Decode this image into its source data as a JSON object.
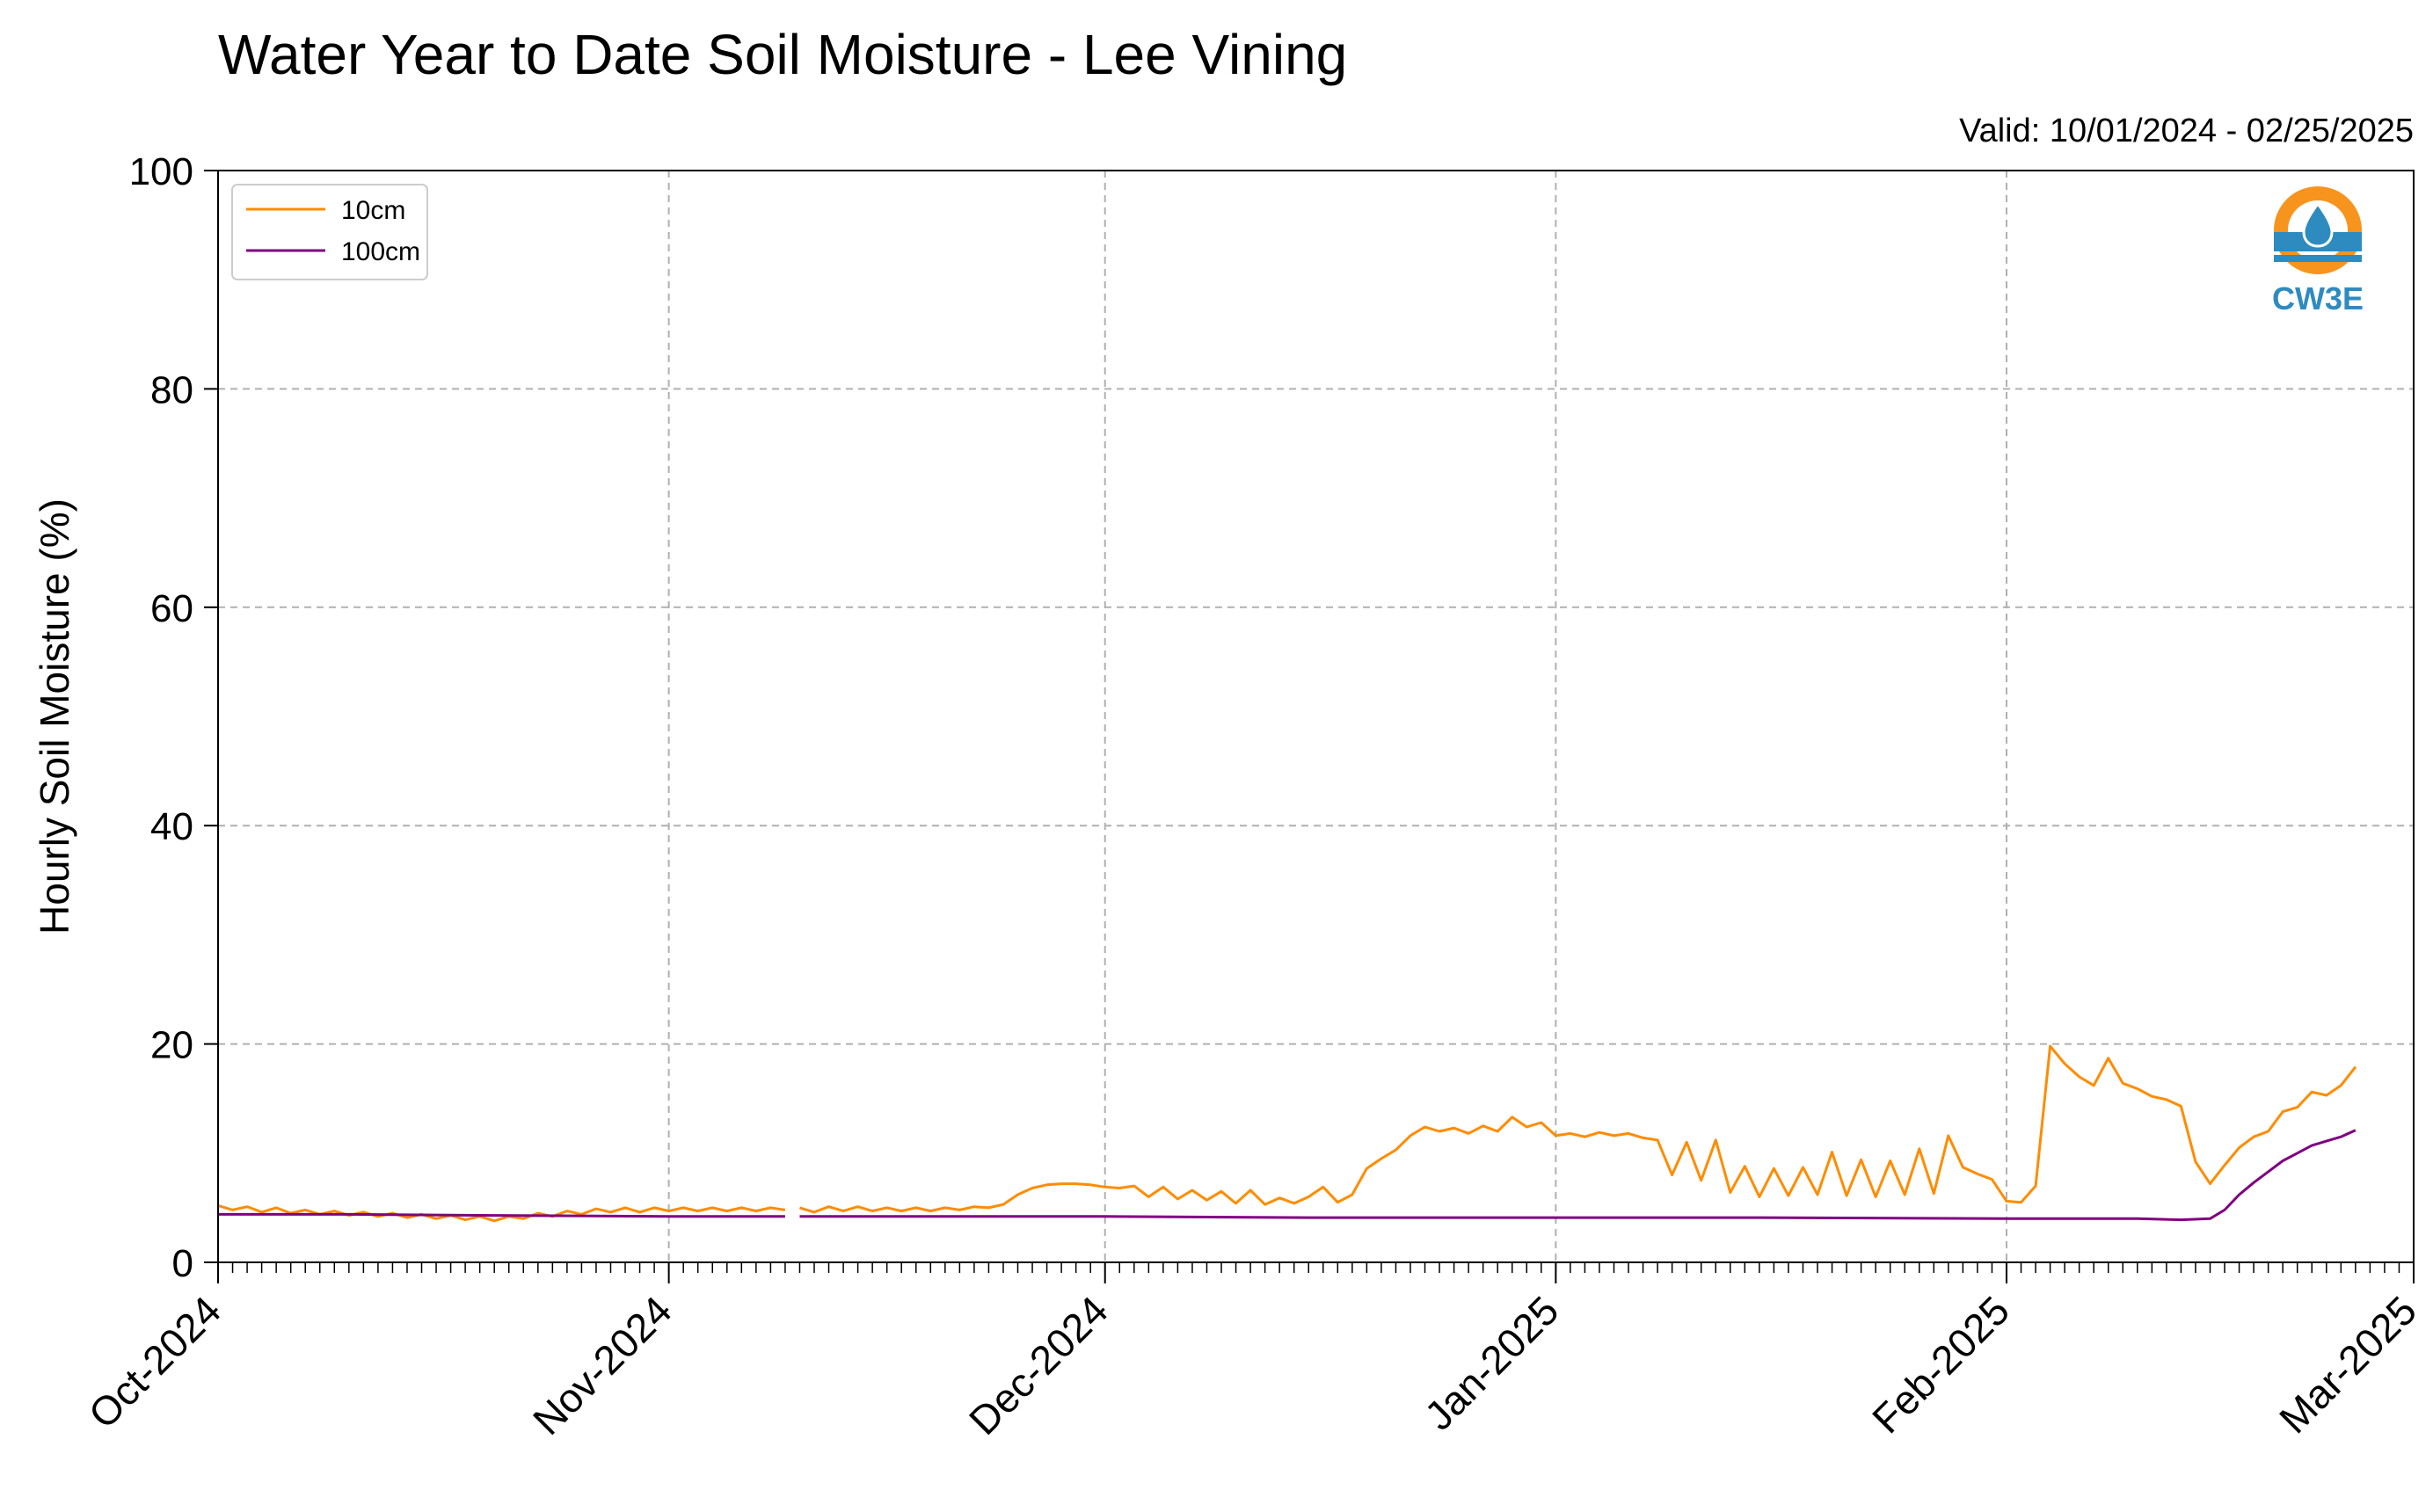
{
  "chart_data": {
    "type": "line",
    "title": "Water Year to Date Soil Moisture - Lee Vining",
    "subtitle": "Valid: 10/01/2024 - 02/25/2025",
    "xlabel": "",
    "ylabel": "Hourly Soil Moisture (%)",
    "x_range": [
      "2024-10-01",
      "2025-03-01"
    ],
    "ylim": [
      0,
      100
    ],
    "yticks": [
      0,
      20,
      40,
      60,
      80,
      100
    ],
    "ytick_labels": [
      "0",
      "20",
      "40",
      "60",
      "80",
      "100"
    ],
    "xticks": [
      "2024-10-01",
      "2024-11-01",
      "2024-12-01",
      "2025-01-01",
      "2025-02-01",
      "2025-03-01"
    ],
    "xtick_labels": [
      "Oct-2024",
      "Nov-2024",
      "Dec-2024",
      "Jan-2025",
      "Feb-2025",
      "Mar-2025"
    ],
    "grid": true,
    "legend_position": "top-left",
    "logo_text": "CW3E",
    "colors": {
      "10cm": "#ff8c00",
      "100cm": "#800080",
      "grid": "#b0b0b0",
      "logo_orange": "#f7941d",
      "logo_blue": "#2e8bc0"
    },
    "series": [
      {
        "name": "10cm",
        "color": "#ff8c00",
        "segments": [
          [
            [
              "2024-10-01",
              5.2
            ],
            [
              "2024-10-02",
              4.8
            ],
            [
              "2024-10-03",
              5.1
            ],
            [
              "2024-10-04",
              4.6
            ],
            [
              "2024-10-05",
              5.0
            ],
            [
              "2024-10-06",
              4.5
            ],
            [
              "2024-10-07",
              4.8
            ],
            [
              "2024-10-08",
              4.4
            ],
            [
              "2024-10-09",
              4.7
            ],
            [
              "2024-10-10",
              4.3
            ],
            [
              "2024-10-11",
              4.6
            ],
            [
              "2024-10-12",
              4.2
            ],
            [
              "2024-10-13",
              4.5
            ],
            [
              "2024-10-14",
              4.1
            ],
            [
              "2024-10-15",
              4.4
            ],
            [
              "2024-10-16",
              4.0
            ],
            [
              "2024-10-17",
              4.3
            ],
            [
              "2024-10-18",
              3.9
            ],
            [
              "2024-10-19",
              4.2
            ],
            [
              "2024-10-20",
              3.8
            ],
            [
              "2024-10-21",
              4.2
            ],
            [
              "2024-10-22",
              4.0
            ],
            [
              "2024-10-23",
              4.5
            ],
            [
              "2024-10-24",
              4.2
            ],
            [
              "2024-10-25",
              4.7
            ],
            [
              "2024-10-26",
              4.4
            ],
            [
              "2024-10-27",
              4.9
            ],
            [
              "2024-10-28",
              4.6
            ],
            [
              "2024-10-29",
              5.0
            ],
            [
              "2024-10-30",
              4.6
            ],
            [
              "2024-10-31",
              5.0
            ],
            [
              "2024-11-01",
              4.7
            ],
            [
              "2024-11-02",
              5.0
            ],
            [
              "2024-11-03",
              4.7
            ],
            [
              "2024-11-04",
              5.0
            ],
            [
              "2024-11-05",
              4.7
            ],
            [
              "2024-11-06",
              5.0
            ],
            [
              "2024-11-07",
              4.7
            ],
            [
              "2024-11-08",
              5.0
            ],
            [
              "2024-11-09",
              4.8
            ]
          ],
          [
            [
              "2024-11-10",
              5.0
            ],
            [
              "2024-11-11",
              4.6
            ],
            [
              "2024-11-12",
              5.1
            ],
            [
              "2024-11-13",
              4.7
            ],
            [
              "2024-11-14",
              5.1
            ],
            [
              "2024-11-15",
              4.7
            ],
            [
              "2024-11-16",
              5.0
            ],
            [
              "2024-11-17",
              4.7
            ],
            [
              "2024-11-18",
              5.0
            ],
            [
              "2024-11-19",
              4.7
            ],
            [
              "2024-11-20",
              5.0
            ],
            [
              "2024-11-21",
              4.8
            ],
            [
              "2024-11-22",
              5.1
            ],
            [
              "2024-11-23",
              5.0
            ],
            [
              "2024-11-24",
              5.3
            ],
            [
              "2024-11-25",
              6.2
            ],
            [
              "2024-11-26",
              6.8
            ],
            [
              "2024-11-27",
              7.1
            ],
            [
              "2024-11-28",
              7.2
            ],
            [
              "2024-11-29",
              7.2
            ],
            [
              "2024-11-30",
              7.1
            ],
            [
              "2024-12-01",
              6.9
            ],
            [
              "2024-12-02",
              6.8
            ],
            [
              "2024-12-03",
              7.0
            ],
            [
              "2024-12-04",
              6.0
            ],
            [
              "2024-12-05",
              6.9
            ],
            [
              "2024-12-06",
              5.8
            ],
            [
              "2024-12-07",
              6.6
            ],
            [
              "2024-12-08",
              5.7
            ],
            [
              "2024-12-09",
              6.5
            ],
            [
              "2024-12-10",
              5.4
            ],
            [
              "2024-12-11",
              6.6
            ],
            [
              "2024-12-12",
              5.3
            ],
            [
              "2024-12-13",
              5.9
            ],
            [
              "2024-12-14",
              5.4
            ],
            [
              "2024-12-15",
              6.0
            ],
            [
              "2024-12-16",
              6.9
            ],
            [
              "2024-12-17",
              5.5
            ],
            [
              "2024-12-18",
              6.2
            ],
            [
              "2024-12-19",
              8.6
            ],
            [
              "2024-12-20",
              9.5
            ],
            [
              "2024-12-21",
              10.3
            ],
            [
              "2024-12-22",
              11.6
            ],
            [
              "2024-12-23",
              12.4
            ],
            [
              "2024-12-24",
              12.0
            ],
            [
              "2024-12-25",
              12.3
            ],
            [
              "2024-12-26",
              11.8
            ],
            [
              "2024-12-27",
              12.5
            ],
            [
              "2024-12-28",
              12.0
            ],
            [
              "2024-12-29",
              13.3
            ],
            [
              "2024-12-30",
              12.4
            ],
            [
              "2024-12-31",
              12.8
            ],
            [
              "2025-01-01",
              11.6
            ],
            [
              "2025-01-02",
              11.8
            ],
            [
              "2025-01-03",
              11.5
            ],
            [
              "2025-01-04",
              11.9
            ],
            [
              "2025-01-05",
              11.6
            ],
            [
              "2025-01-06",
              11.8
            ],
            [
              "2025-01-07",
              11.4
            ],
            [
              "2025-01-08",
              11.2
            ],
            [
              "2025-01-09",
              8.0
            ],
            [
              "2025-01-10",
              11.0
            ],
            [
              "2025-01-11",
              7.5
            ],
            [
              "2025-01-12",
              11.2
            ],
            [
              "2025-01-13",
              6.4
            ],
            [
              "2025-01-14",
              8.8
            ],
            [
              "2025-01-15",
              6.0
            ],
            [
              "2025-01-16",
              8.6
            ],
            [
              "2025-01-17",
              6.1
            ],
            [
              "2025-01-18",
              8.7
            ],
            [
              "2025-01-19",
              6.2
            ],
            [
              "2025-01-20",
              10.1
            ],
            [
              "2025-01-21",
              6.1
            ],
            [
              "2025-01-22",
              9.4
            ],
            [
              "2025-01-23",
              6.0
            ],
            [
              "2025-01-24",
              9.3
            ],
            [
              "2025-01-25",
              6.2
            ],
            [
              "2025-01-26",
              10.4
            ],
            [
              "2025-01-27",
              6.3
            ],
            [
              "2025-01-28",
              11.6
            ],
            [
              "2025-01-29",
              8.7
            ],
            [
              "2025-01-30",
              8.1
            ],
            [
              "2025-01-31",
              7.6
            ],
            [
              "2025-02-01",
              5.6
            ],
            [
              "2025-02-02",
              5.5
            ],
            [
              "2025-02-03",
              7.0
            ],
            [
              "2025-02-04",
              19.8
            ],
            [
              "2025-02-05",
              18.2
            ],
            [
              "2025-02-06",
              17.0
            ],
            [
              "2025-02-07",
              16.2
            ],
            [
              "2025-02-08",
              18.7
            ],
            [
              "2025-02-09",
              16.4
            ],
            [
              "2025-02-10",
              15.9
            ],
            [
              "2025-02-11",
              15.2
            ],
            [
              "2025-02-12",
              14.9
            ],
            [
              "2025-02-13",
              14.3
            ],
            [
              "2025-02-14",
              9.2
            ],
            [
              "2025-02-15",
              7.2
            ],
            [
              "2025-02-16",
              8.9
            ],
            [
              "2025-02-17",
              10.5
            ],
            [
              "2025-02-18",
              11.5
            ],
            [
              "2025-02-19",
              12.0
            ],
            [
              "2025-02-20",
              13.8
            ],
            [
              "2025-02-21",
              14.2
            ],
            [
              "2025-02-22",
              15.6
            ],
            [
              "2025-02-23",
              15.3
            ],
            [
              "2025-02-24",
              16.2
            ],
            [
              "2025-02-25",
              17.9
            ]
          ]
        ]
      },
      {
        "name": "100cm",
        "color": "#800080",
        "segments": [
          [
            [
              "2024-10-01",
              4.4
            ],
            [
              "2024-10-10",
              4.4
            ],
            [
              "2024-10-20",
              4.3
            ],
            [
              "2024-11-01",
              4.2
            ],
            [
              "2024-11-09",
              4.2
            ]
          ],
          [
            [
              "2024-11-10",
              4.2
            ],
            [
              "2024-12-01",
              4.2
            ],
            [
              "2024-12-15",
              4.1
            ],
            [
              "2025-01-01",
              4.1
            ],
            [
              "2025-01-15",
              4.1
            ],
            [
              "2025-02-01",
              4.0
            ],
            [
              "2025-02-10",
              4.0
            ],
            [
              "2025-02-13",
              3.9
            ],
            [
              "2025-02-15",
              4.0
            ],
            [
              "2025-02-16",
              4.8
            ],
            [
              "2025-02-17",
              6.2
            ],
            [
              "2025-02-18",
              7.3
            ],
            [
              "2025-02-19",
              8.3
            ],
            [
              "2025-02-20",
              9.3
            ],
            [
              "2025-02-21",
              10.0
            ],
            [
              "2025-02-22",
              10.7
            ],
            [
              "2025-02-23",
              11.1
            ],
            [
              "2025-02-24",
              11.5
            ],
            [
              "2025-02-25",
              12.1
            ]
          ]
        ]
      }
    ]
  }
}
